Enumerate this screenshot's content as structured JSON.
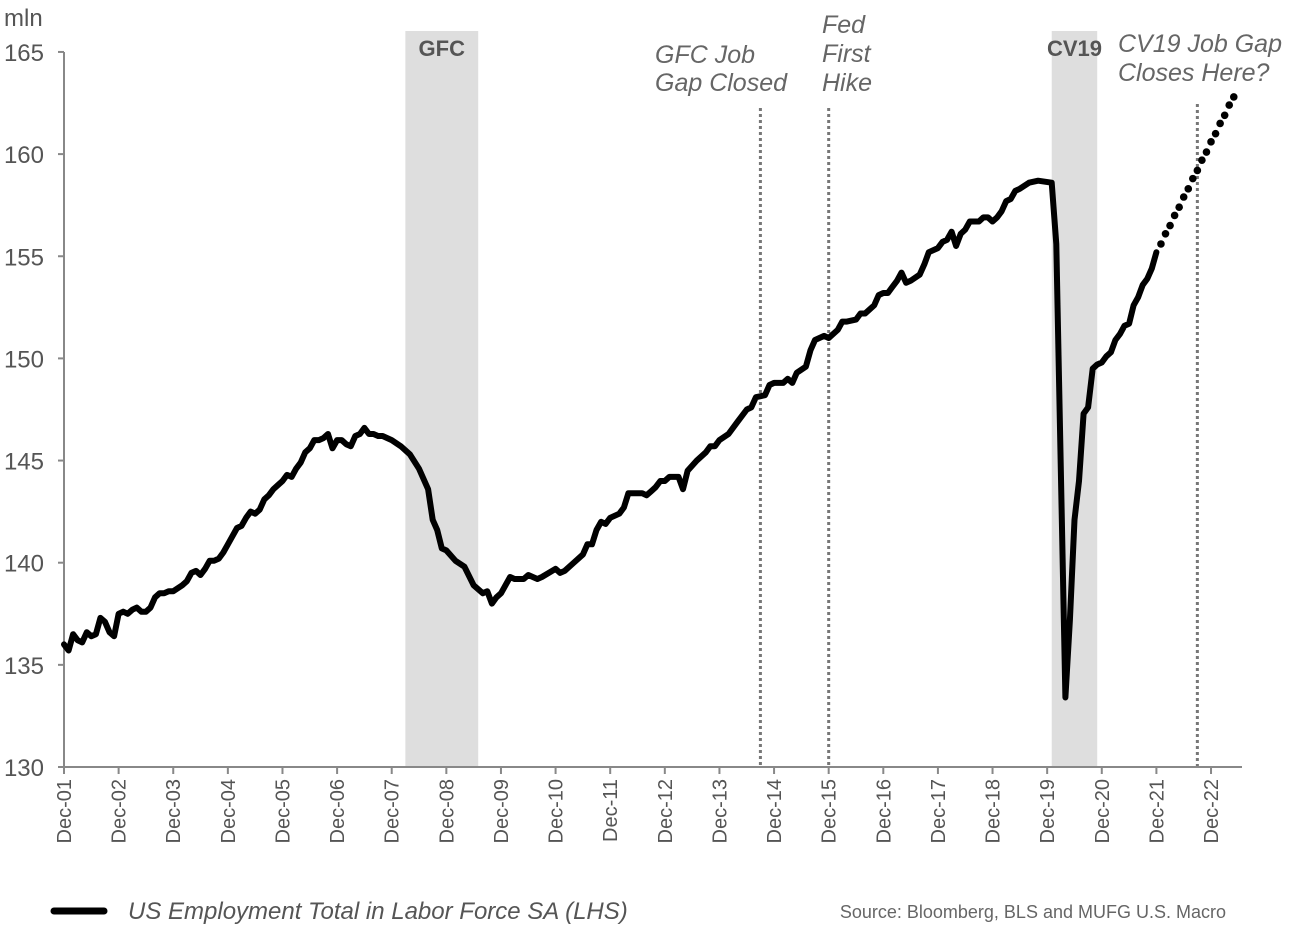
{
  "chart_data": {
    "type": "line",
    "ylabel": "mln",
    "ylim": [
      130,
      165
    ],
    "yticks": [
      130,
      135,
      140,
      145,
      150,
      155,
      160,
      165
    ],
    "xlim": [
      "2001-12",
      "2023-06"
    ],
    "xticks": [
      {
        "date": "2001-12",
        "label": "Dec-01"
      },
      {
        "date": "2002-12",
        "label": "Dec-02"
      },
      {
        "date": "2003-12",
        "label": "Dec-03"
      },
      {
        "date": "2004-12",
        "label": "Dec-04"
      },
      {
        "date": "2005-12",
        "label": "Dec-05"
      },
      {
        "date": "2006-12",
        "label": "Dec-06"
      },
      {
        "date": "2007-12",
        "label": "Dec-07"
      },
      {
        "date": "2008-12",
        "label": "Dec-08"
      },
      {
        "date": "2009-12",
        "label": "Dec-09"
      },
      {
        "date": "2010-12",
        "label": "Dec-10"
      },
      {
        "date": "2011-12",
        "label": "Dec-11"
      },
      {
        "date": "2012-12",
        "label": "Dec-12"
      },
      {
        "date": "2013-12",
        "label": "Dec-13"
      },
      {
        "date": "2014-12",
        "label": "Dec-14"
      },
      {
        "date": "2015-12",
        "label": "Dec-15"
      },
      {
        "date": "2016-12",
        "label": "Dec-16"
      },
      {
        "date": "2017-12",
        "label": "Dec-17"
      },
      {
        "date": "2018-12",
        "label": "Dec-18"
      },
      {
        "date": "2019-12",
        "label": "Dec-19"
      },
      {
        "date": "2020-12",
        "label": "Dec-20"
      },
      {
        "date": "2021-12",
        "label": "Dec-21"
      },
      {
        "date": "2022-12",
        "label": "Dec-22"
      }
    ],
    "grid": false,
    "legend_placement": "bottom-left",
    "series": [
      {
        "name": "US Employment Total in Labor Force SA (LHS)",
        "color": "#000000",
        "style": "solid",
        "points": [
          [
            "2001-12",
            136.0
          ],
          [
            "2002-01",
            135.7
          ],
          [
            "2002-02",
            136.5
          ],
          [
            "2002-03",
            136.2
          ],
          [
            "2002-04",
            136.1
          ],
          [
            "2002-05",
            136.6
          ],
          [
            "2002-06",
            136.4
          ],
          [
            "2002-07",
            136.5
          ],
          [
            "2002-08",
            137.3
          ],
          [
            "2002-09",
            137.1
          ],
          [
            "2002-10",
            136.6
          ],
          [
            "2002-11",
            136.4
          ],
          [
            "2002-12",
            137.5
          ],
          [
            "2003-01",
            137.6
          ],
          [
            "2003-02",
            137.5
          ],
          [
            "2003-03",
            137.7
          ],
          [
            "2003-04",
            137.8
          ],
          [
            "2003-05",
            137.6
          ],
          [
            "2003-06",
            137.6
          ],
          [
            "2003-07",
            137.8
          ],
          [
            "2003-08",
            138.3
          ],
          [
            "2003-09",
            138.5
          ],
          [
            "2003-10",
            138.5
          ],
          [
            "2003-11",
            138.6
          ],
          [
            "2003-12",
            138.6
          ],
          [
            "2004-02",
            138.9
          ],
          [
            "2004-03",
            139.1
          ],
          [
            "2004-04",
            139.5
          ],
          [
            "2004-05",
            139.6
          ],
          [
            "2004-06",
            139.4
          ],
          [
            "2004-07",
            139.7
          ],
          [
            "2004-08",
            140.1
          ],
          [
            "2004-09",
            140.1
          ],
          [
            "2004-10",
            140.2
          ],
          [
            "2004-11",
            140.5
          ],
          [
            "2004-12",
            140.9
          ],
          [
            "2005-02",
            141.7
          ],
          [
            "2005-03",
            141.8
          ],
          [
            "2005-04",
            142.2
          ],
          [
            "2005-05",
            142.5
          ],
          [
            "2005-06",
            142.4
          ],
          [
            "2005-07",
            142.6
          ],
          [
            "2005-08",
            143.1
          ],
          [
            "2005-09",
            143.3
          ],
          [
            "2005-10",
            143.6
          ],
          [
            "2005-11",
            143.8
          ],
          [
            "2005-12",
            144.0
          ],
          [
            "2006-01",
            144.3
          ],
          [
            "2006-02",
            144.2
          ],
          [
            "2006-03",
            144.6
          ],
          [
            "2006-04",
            144.9
          ],
          [
            "2006-05",
            145.4
          ],
          [
            "2006-06",
            145.6
          ],
          [
            "2006-07",
            146.0
          ],
          [
            "2006-08",
            146.0
          ],
          [
            "2006-09",
            146.1
          ],
          [
            "2006-10",
            146.3
          ],
          [
            "2006-11",
            145.6
          ],
          [
            "2006-12",
            146.0
          ],
          [
            "2007-01",
            146.0
          ],
          [
            "2007-02",
            145.8
          ],
          [
            "2007-03",
            145.7
          ],
          [
            "2007-04",
            146.2
          ],
          [
            "2007-05",
            146.3
          ],
          [
            "2007-06",
            146.6
          ],
          [
            "2007-07",
            146.3
          ],
          [
            "2007-08",
            146.3
          ],
          [
            "2007-09",
            146.2
          ],
          [
            "2007-10",
            146.2
          ],
          [
            "2007-12",
            146.0
          ],
          [
            "2008-02",
            145.7
          ],
          [
            "2008-04",
            145.3
          ],
          [
            "2008-06",
            144.6
          ],
          [
            "2008-08",
            143.6
          ],
          [
            "2008-09",
            142.1
          ],
          [
            "2008-10",
            141.6
          ],
          [
            "2008-11",
            140.7
          ],
          [
            "2008-12",
            140.6
          ],
          [
            "2009-02",
            140.1
          ],
          [
            "2009-04",
            139.8
          ],
          [
            "2009-06",
            138.9
          ],
          [
            "2009-08",
            138.5
          ],
          [
            "2009-09",
            138.6
          ],
          [
            "2009-10",
            138.0
          ],
          [
            "2009-11",
            138.3
          ],
          [
            "2009-12",
            138.5
          ],
          [
            "2010-02",
            139.3
          ],
          [
            "2010-03",
            139.2
          ],
          [
            "2010-05",
            139.2
          ],
          [
            "2010-06",
            139.4
          ],
          [
            "2010-07",
            139.3
          ],
          [
            "2010-08",
            139.2
          ],
          [
            "2010-09",
            139.3
          ],
          [
            "2010-12",
            139.7
          ],
          [
            "2011-01",
            139.5
          ],
          [
            "2011-02",
            139.6
          ],
          [
            "2011-04",
            140.0
          ],
          [
            "2011-06",
            140.4
          ],
          [
            "2011-07",
            140.9
          ],
          [
            "2011-08",
            140.9
          ],
          [
            "2011-09",
            141.6
          ],
          [
            "2011-10",
            142.0
          ],
          [
            "2011-11",
            141.9
          ],
          [
            "2011-12",
            142.2
          ],
          [
            "2012-02",
            142.4
          ],
          [
            "2012-03",
            142.7
          ],
          [
            "2012-04",
            143.4
          ],
          [
            "2012-05",
            143.4
          ],
          [
            "2012-06",
            143.4
          ],
          [
            "2012-07",
            143.4
          ],
          [
            "2012-08",
            143.3
          ],
          [
            "2012-09",
            143.5
          ],
          [
            "2012-10",
            143.7
          ],
          [
            "2012-11",
            144.0
          ],
          [
            "2012-12",
            144.0
          ],
          [
            "2013-01",
            144.2
          ],
          [
            "2013-02",
            144.2
          ],
          [
            "2013-03",
            144.2
          ],
          [
            "2013-04",
            143.6
          ],
          [
            "2013-05",
            144.5
          ],
          [
            "2013-07",
            145.0
          ],
          [
            "2013-09",
            145.4
          ],
          [
            "2013-10",
            145.7
          ],
          [
            "2013-11",
            145.7
          ],
          [
            "2013-12",
            146.0
          ],
          [
            "2014-02",
            146.3
          ],
          [
            "2014-04",
            146.9
          ],
          [
            "2014-06",
            147.5
          ],
          [
            "2014-07",
            147.6
          ],
          [
            "2014-08",
            148.1
          ],
          [
            "2014-10",
            148.2
          ],
          [
            "2014-11",
            148.7
          ],
          [
            "2014-12",
            148.8
          ],
          [
            "2015-02",
            148.8
          ],
          [
            "2015-03",
            149.0
          ],
          [
            "2015-04",
            148.8
          ],
          [
            "2015-05",
            149.3
          ],
          [
            "2015-07",
            149.6
          ],
          [
            "2015-08",
            150.4
          ],
          [
            "2015-09",
            150.9
          ],
          [
            "2015-11",
            151.1
          ],
          [
            "2015-12",
            151.0
          ],
          [
            "2016-02",
            151.4
          ],
          [
            "2016-03",
            151.8
          ],
          [
            "2016-04",
            151.8
          ],
          [
            "2016-06",
            151.9
          ],
          [
            "2016-07",
            152.2
          ],
          [
            "2016-08",
            152.2
          ],
          [
            "2016-10",
            152.6
          ],
          [
            "2016-11",
            153.1
          ],
          [
            "2016-12",
            153.2
          ],
          [
            "2017-01",
            153.2
          ],
          [
            "2017-02",
            153.5
          ],
          [
            "2017-03",
            153.8
          ],
          [
            "2017-04",
            154.2
          ],
          [
            "2017-05",
            153.7
          ],
          [
            "2017-06",
            153.8
          ],
          [
            "2017-08",
            154.1
          ],
          [
            "2017-09",
            154.6
          ],
          [
            "2017-10",
            155.2
          ],
          [
            "2017-12",
            155.4
          ],
          [
            "2018-01",
            155.7
          ],
          [
            "2018-02",
            155.8
          ],
          [
            "2018-03",
            156.2
          ],
          [
            "2018-04",
            155.5
          ],
          [
            "2018-05",
            156.1
          ],
          [
            "2018-06",
            156.3
          ],
          [
            "2018-07",
            156.7
          ],
          [
            "2018-08",
            156.7
          ],
          [
            "2018-09",
            156.7
          ],
          [
            "2018-10",
            156.9
          ],
          [
            "2018-11",
            156.9
          ],
          [
            "2018-12",
            156.7
          ],
          [
            "2019-01",
            156.9
          ],
          [
            "2019-02",
            157.2
          ],
          [
            "2019-03",
            157.7
          ],
          [
            "2019-04",
            157.8
          ],
          [
            "2019-05",
            158.2
          ],
          [
            "2019-06",
            158.3
          ],
          [
            "2019-08",
            158.6
          ],
          [
            "2019-10",
            158.7
          ],
          [
            "2020-01",
            158.6
          ],
          [
            "2020-02",
            155.6
          ],
          [
            "2020-04",
            133.4
          ],
          [
            "2020-05",
            137.2
          ],
          [
            "2020-06",
            142.1
          ],
          [
            "2020-07",
            144.0
          ],
          [
            "2020-08",
            147.3
          ],
          [
            "2020-09",
            147.6
          ],
          [
            "2020-10",
            149.5
          ],
          [
            "2020-11",
            149.7
          ],
          [
            "2020-12",
            149.8
          ],
          [
            "2021-01",
            150.1
          ],
          [
            "2021-02",
            150.3
          ],
          [
            "2021-03",
            150.9
          ],
          [
            "2021-04",
            151.2
          ],
          [
            "2021-05",
            151.6
          ],
          [
            "2021-06",
            151.7
          ],
          [
            "2021-07",
            152.6
          ],
          [
            "2021-08",
            153.0
          ],
          [
            "2021-09",
            153.6
          ],
          [
            "2021-10",
            153.9
          ],
          [
            "2021-11",
            154.4
          ],
          [
            "2021-12",
            155.2
          ]
        ]
      },
      {
        "color": "#000000",
        "style": "dotted-projection",
        "points": [
          [
            "2022-01",
            155.6
          ],
          [
            "2022-02",
            156.1
          ],
          [
            "2022-03",
            156.5
          ],
          [
            "2022-04",
            157.0
          ],
          [
            "2022-05",
            157.4
          ],
          [
            "2022-06",
            157.9
          ],
          [
            "2022-07",
            158.3
          ],
          [
            "2022-08",
            158.8
          ],
          [
            "2022-09",
            159.2
          ],
          [
            "2022-10",
            159.7
          ],
          [
            "2022-11",
            160.1
          ],
          [
            "2022-12",
            160.6
          ],
          [
            "2023-01",
            161.0
          ],
          [
            "2023-02",
            161.5
          ],
          [
            "2023-03",
            161.9
          ],
          [
            "2023-04",
            162.4
          ],
          [
            "2023-05",
            162.8
          ]
        ]
      }
    ],
    "shaded_periods": [
      {
        "label": "GFC",
        "start": "2008-03",
        "end": "2009-07",
        "color": "#dedede"
      },
      {
        "label": "CV19",
        "start": "2020-01",
        "end": "2020-11",
        "color": "#dedede"
      }
    ],
    "vertical_markers": [
      {
        "date": "2014-09",
        "lines": [
          "GFC Job",
          "Gap Closed"
        ]
      },
      {
        "date": "2015-12",
        "lines": [
          "Fed",
          "First",
          "Hike"
        ]
      },
      {
        "date": "2022-09",
        "lines": [
          "CV19 Job Gap",
          "Closes Here?"
        ]
      }
    ],
    "legend": [
      {
        "label": "US Employment Total in Labor Force SA (LHS)",
        "color": "#000000"
      }
    ],
    "source": "Source: Bloomberg, BLS and MUFG U.S. Macro"
  }
}
